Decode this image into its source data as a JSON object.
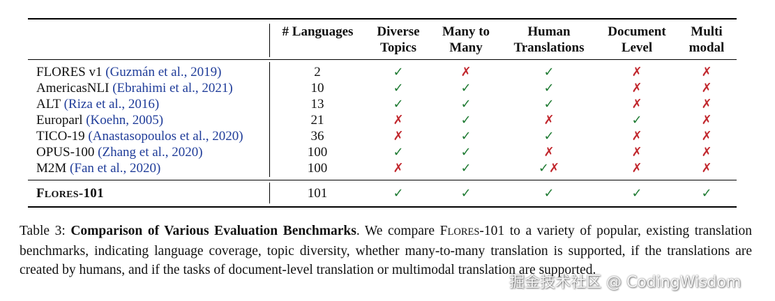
{
  "colors": {
    "check": "#1e7a32",
    "cross": "#c1272d",
    "citation": "#1f3c99"
  },
  "headers": {
    "languages": "# Languages",
    "diverse": [
      "Diverse",
      "Topics"
    ],
    "many": [
      "Many to",
      "Many"
    ],
    "human": [
      "Human",
      "Translations"
    ],
    "document": [
      "Document",
      "Level"
    ],
    "multi": [
      "Multi",
      "modal"
    ]
  },
  "rows": [
    {
      "name": "FLORES v1 ",
      "cite": "(Guzmán et al., 2019)",
      "languages": "2",
      "diverse": "✓",
      "many": "✗",
      "human": "✓",
      "document": "✗",
      "multi": "✗"
    },
    {
      "name": "AmericasNLI ",
      "cite": "(Ebrahimi et al., 2021)",
      "languages": "10",
      "diverse": "✓",
      "many": "✓",
      "human": "✓",
      "document": "✗",
      "multi": "✗"
    },
    {
      "name": "ALT ",
      "cite": "(Riza et al., 2016)",
      "languages": "13",
      "diverse": "✓",
      "many": "✓",
      "human": "✓",
      "document": "✗",
      "multi": "✗"
    },
    {
      "name": "Europarl ",
      "cite": "(Koehn, 2005)",
      "languages": "21",
      "diverse": "✗",
      "many": "✓",
      "human": "✗",
      "document": "✓",
      "multi": "✗"
    },
    {
      "name": "TICO-19 ",
      "cite": "(Anastasopoulos et al., 2020)",
      "languages": "36",
      "diverse": "✗",
      "many": "✓",
      "human": "✓",
      "document": "✗",
      "multi": "✗"
    },
    {
      "name": "OPUS-100 ",
      "cite": "(Zhang et al., 2020)",
      "languages": "100",
      "diverse": "✓",
      "many": "✓",
      "human": "✗",
      "document": "✗",
      "multi": "✗"
    },
    {
      "name": "M2M ",
      "cite": "(Fan et al., 2020)",
      "languages": "100",
      "diverse": "✗",
      "many": "✓",
      "human": "✓✗",
      "document": "✗",
      "multi": "✗"
    }
  ],
  "flores": {
    "f": "F",
    "lores": "LORES",
    "num": "-101",
    "languages": "101",
    "diverse": "✓",
    "many": "✓",
    "human": "✓",
    "document": "✓",
    "multi": "✓"
  },
  "caption": {
    "label": "Table 3: ",
    "title": "Comparison of Various Evaluation Benchmarks",
    "t1": ". We compare F",
    "t_sc": "LORES",
    "t2": "-101 to a variety of popular, existing translation benchmarks, indicating language coverage, topic diversity, whether many-to-many translation is supported, if the translations are created by humans, and if the tasks of document-level translation or multimodal translation are supported."
  },
  "watermark": "掘金技术社区 @ CodingWisdom"
}
